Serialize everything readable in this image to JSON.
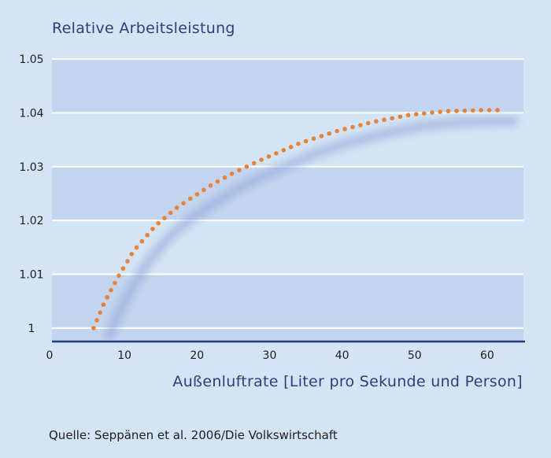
{
  "chart_data": {
    "type": "line",
    "title": "Relative Arbeitsleistung",
    "xlabel": "Außenluftrate [Liter pro Sekunde und Person]",
    "ylabel": "",
    "source": "Quelle: Seppänen et al. 2006/Die Volkswirtschaft",
    "xlim": [
      0,
      65
    ],
    "ylim": [
      0.9975,
      1.05
    ],
    "x_ticks": [
      0,
      10,
      20,
      30,
      40,
      50,
      60
    ],
    "y_ticks": [
      1,
      1.01,
      1.02,
      1.03,
      1.04,
      1.05
    ],
    "y_tick_labels": [
      "1",
      "1.01",
      "1.02",
      "1.03",
      "1.04",
      "1.05"
    ],
    "grid": true,
    "series": [
      {
        "x": [
          6.5,
          8,
          10,
          12,
          15,
          18,
          20,
          23,
          26,
          30,
          35,
          40,
          45,
          50,
          55,
          60,
          63
        ],
        "y": [
          1.0,
          1.0048,
          1.0098,
          1.0143,
          1.019,
          1.0224,
          1.0242,
          1.0268,
          1.029,
          1.0315,
          1.0344,
          1.0366,
          1.0383,
          1.0396,
          1.0403,
          1.0405,
          1.0405
        ],
        "color": "#e8823a"
      }
    ]
  }
}
